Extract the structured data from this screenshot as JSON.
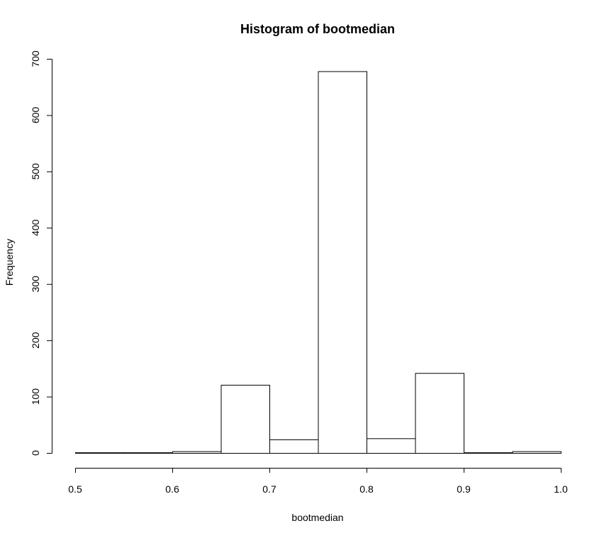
{
  "chart_data": {
    "type": "bar",
    "title": "Histogram of bootmedian",
    "xlabel": "bootmedian",
    "ylabel": "Frequency",
    "xlim": [
      0.5,
      1.0
    ],
    "ylim": [
      0,
      700
    ],
    "x_ticks": [
      "0.5",
      "0.6",
      "0.7",
      "0.8",
      "0.9",
      "1.0"
    ],
    "y_ticks": [
      "0",
      "100",
      "200",
      "300",
      "400",
      "500",
      "600",
      "700"
    ],
    "bin_edges": [
      0.5,
      0.55,
      0.6,
      0.65,
      0.7,
      0.75,
      0.8,
      0.85,
      0.9,
      0.95,
      1.0
    ],
    "values": [
      1,
      1,
      3,
      121,
      24,
      678,
      26,
      142,
      1,
      3
    ],
    "grid": false
  }
}
